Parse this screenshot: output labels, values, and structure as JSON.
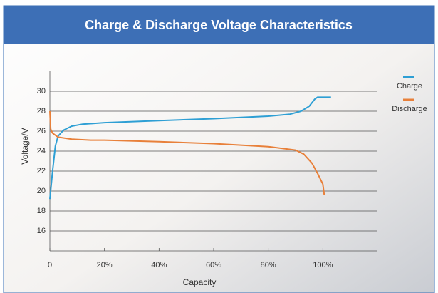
{
  "chart_data": {
    "type": "line",
    "title": "Charge & Discharge Voltage Characteristics",
    "x_label": "Capacity",
    "y_label": "Voltage/V",
    "xlim": [
      0,
      120
    ],
    "xticks": [
      0,
      {
        "value": 20,
        "label": "20%"
      },
      {
        "value": 40,
        "label": "40%"
      },
      {
        "value": 60,
        "label": "60%"
      },
      {
        "value": 80,
        "label": "80%"
      },
      {
        "value": 100,
        "label": "100%"
      }
    ],
    "ylim": [
      14,
      32
    ],
    "yticks": [
      16,
      18,
      20,
      22,
      24,
      26,
      28,
      30
    ],
    "grid": true,
    "legend": "right",
    "series": [
      {
        "name": "Charge",
        "color": "#2e9fd4",
        "x": [
          0,
          1,
          2,
          3,
          5,
          8,
          12,
          20,
          40,
          60,
          80,
          88,
          92,
          95,
          97,
          98,
          103
        ],
        "values": [
          19.2,
          22,
          24.5,
          25.5,
          26.1,
          26.5,
          26.7,
          26.85,
          27.05,
          27.25,
          27.5,
          27.7,
          28.0,
          28.5,
          29.2,
          29.4,
          29.4
        ]
      },
      {
        "name": "Discharge",
        "color": "#e8803a",
        "x": [
          0,
          0.3,
          1,
          3,
          8,
          15,
          20,
          40,
          60,
          80,
          90,
          93,
          96,
          98,
          100,
          100.5
        ],
        "values": [
          28,
          26.2,
          25.8,
          25.4,
          25.2,
          25.1,
          25.1,
          24.95,
          24.75,
          24.45,
          24.1,
          23.7,
          22.8,
          21.8,
          20.7,
          19.6
        ]
      }
    ]
  }
}
